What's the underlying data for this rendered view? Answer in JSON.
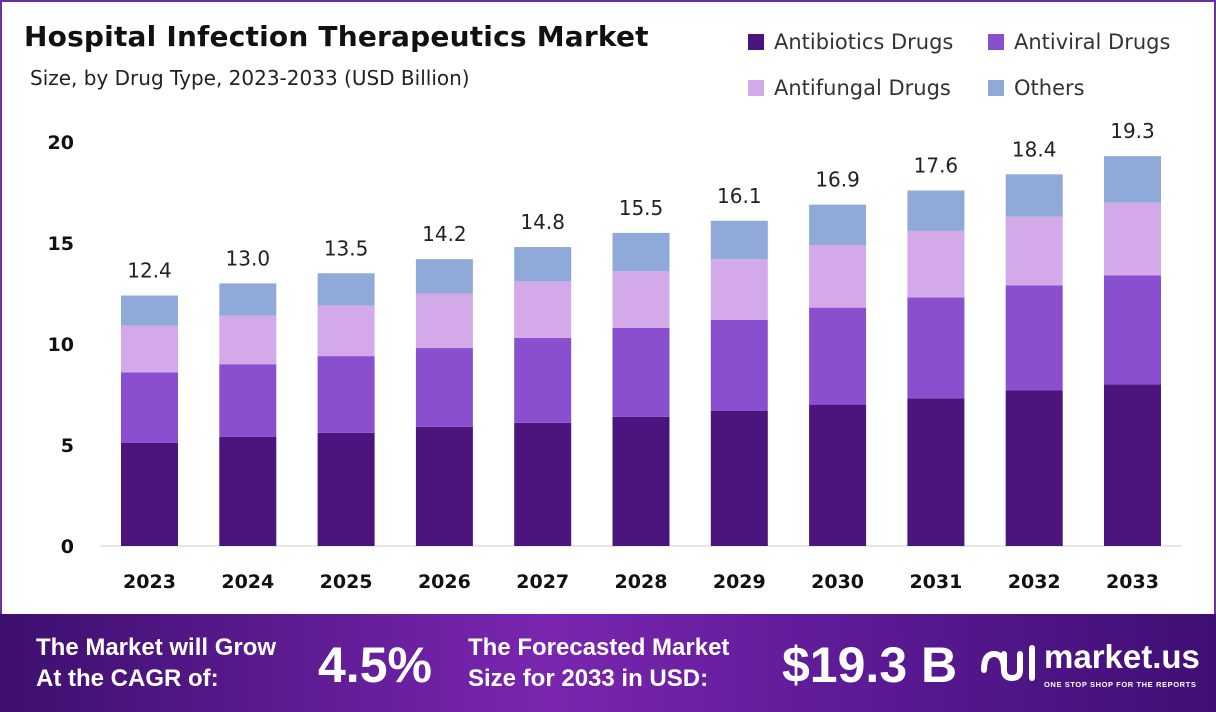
{
  "header": {
    "title": "Hospital Infection Therapeutics Market",
    "subtitle": "Size, by Drug Type, 2023-2033 (USD Billion)"
  },
  "legend": [
    {
      "label": "Antibiotics Drugs",
      "color": "#4b157d"
    },
    {
      "label": "Antiviral Drugs",
      "color": "#8a4fcf"
    },
    {
      "label": "Antifungal Drugs",
      "color": "#d3a9ea"
    },
    {
      "label": "Others",
      "color": "#8faad8"
    }
  ],
  "chart_data": {
    "type": "bar",
    "stacked": true,
    "title": "Hospital Infection Therapeutics Market",
    "subtitle": "Size, by Drug Type, 2023-2033 (USD Billion)",
    "categories": [
      "2023",
      "2024",
      "2025",
      "2026",
      "2027",
      "2028",
      "2029",
      "2030",
      "2031",
      "2032",
      "2033"
    ],
    "series": [
      {
        "name": "Antibiotics Drugs",
        "color": "#4b157d",
        "values": [
          5.1,
          5.4,
          5.6,
          5.9,
          6.1,
          6.4,
          6.7,
          7.0,
          7.3,
          7.7,
          8.0
        ]
      },
      {
        "name": "Antiviral Drugs",
        "color": "#8a4fcf",
        "values": [
          3.5,
          3.6,
          3.8,
          3.9,
          4.2,
          4.4,
          4.5,
          4.8,
          5.0,
          5.2,
          5.4
        ]
      },
      {
        "name": "Antifungal Drugs",
        "color": "#d3a9ea",
        "values": [
          2.3,
          2.4,
          2.5,
          2.7,
          2.8,
          2.8,
          3.0,
          3.1,
          3.3,
          3.4,
          3.6
        ]
      },
      {
        "name": "Others",
        "color": "#8faad8",
        "values": [
          1.5,
          1.6,
          1.6,
          1.7,
          1.7,
          1.9,
          1.9,
          2.0,
          2.0,
          2.1,
          2.3
        ]
      }
    ],
    "totals": [
      "12.4",
      "13.0",
      "13.5",
      "14.2",
      "14.8",
      "15.5",
      "16.1",
      "16.9",
      "17.6",
      "18.4",
      "19.3"
    ],
    "ylim": [
      0,
      20
    ],
    "yticks": [
      "0",
      "5",
      "10",
      "15",
      "20"
    ],
    "xlabel": "",
    "ylabel": "",
    "grid": false,
    "legend_position": "top-right"
  },
  "banner": {
    "cagr_text_line1": "The Market will Grow",
    "cagr_text_line2": "At the CAGR of:",
    "cagr_value": "4.5%",
    "forecast_text_line1": "The Forecasted Market",
    "forecast_text_line2": "Size for 2033 in USD:",
    "forecast_value": "$19.3 B",
    "brand_name": "market.us",
    "brand_tagline": "ONE STOP SHOP FOR THE REPORTS"
  }
}
